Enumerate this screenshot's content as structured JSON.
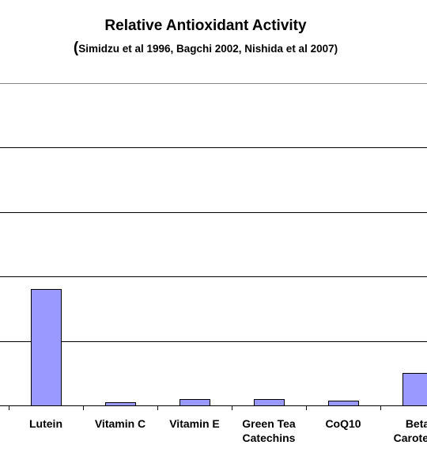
{
  "chart_data": {
    "type": "bar",
    "title": "Relative Antioxidant Activity",
    "subtitle": "Simidzu et al 1996,  Bagchi 2002, Nishida et al 2007",
    "categories": [
      [
        "Lutein"
      ],
      [
        "Vitamin C"
      ],
      [
        "Vitamin E"
      ],
      [
        "Green Tea",
        "Catechins"
      ],
      [
        "CoQ10"
      ],
      [
        "Beta",
        "Carotene"
      ]
    ],
    "values": [
      1.8,
      0.05,
      0.1,
      0.1,
      0.07,
      0.5
    ],
    "ylim": [
      0,
      5
    ],
    "grid": true,
    "colors": {
      "bar_fill": "#9999ff",
      "bar_stroke": "#000000",
      "grid": "#000000"
    }
  }
}
